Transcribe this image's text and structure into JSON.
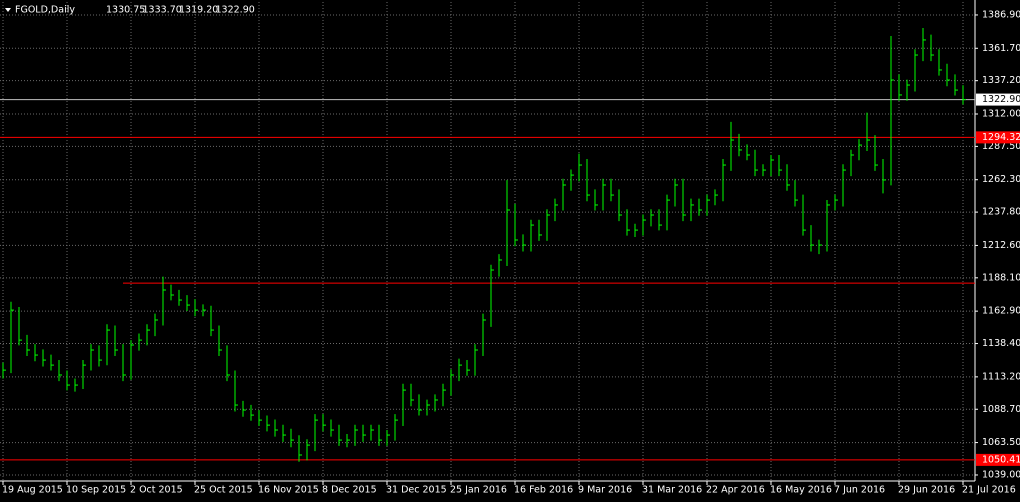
{
  "chart_data": {
    "type": "ohlc",
    "title": "FGOLD,Daily",
    "quote": [
      {
        "value": 1330.75,
        "label": "1330.75"
      },
      {
        "value": 1333.7,
        "label": "1333.70"
      },
      {
        "value": 1319.2,
        "label": "1319.20"
      },
      {
        "value": 1322.9,
        "label": "1322.90"
      }
    ],
    "categories": [
      "19 Aug 2015",
      null,
      null,
      null,
      null,
      null,
      null,
      null,
      "10 Sep 2015",
      null,
      null,
      null,
      null,
      null,
      null,
      null,
      "2 Oct 2015",
      null,
      null,
      null,
      null,
      null,
      null,
      null,
      "25 Oct 2015",
      null,
      null,
      null,
      null,
      null,
      null,
      null,
      "16 Nov 2015",
      null,
      null,
      null,
      null,
      null,
      null,
      null,
      "8 Dec 2015",
      null,
      null,
      null,
      null,
      null,
      null,
      null,
      "31 Dec 2015",
      null,
      null,
      null,
      null,
      null,
      null,
      null,
      "25 Jan 2016",
      null,
      null,
      null,
      null,
      null,
      null,
      null,
      "16 Feb 2016",
      null,
      null,
      null,
      null,
      null,
      null,
      null,
      "9 Mar 2016",
      null,
      null,
      null,
      null,
      null,
      null,
      null,
      "31 Mar 2016",
      null,
      null,
      null,
      null,
      null,
      null,
      null,
      "22 Apr 2016",
      null,
      null,
      null,
      null,
      null,
      null,
      null,
      "16 May 2016",
      null,
      null,
      null,
      null,
      null,
      null,
      null,
      "7 Jun 2016",
      null,
      null,
      null,
      null,
      null,
      null,
      null,
      "29 Jun 2016",
      null,
      null,
      null,
      null,
      null,
      null,
      null,
      "21 Jul 2016"
    ],
    "high": [
      1124,
      1170,
      1166,
      1145,
      1138,
      1134,
      1130,
      1126,
      1118,
      1112,
      1126,
      1138,
      1137,
      1153,
      1152,
      1138,
      1141,
      1146,
      1153,
      1161,
      1189,
      1183,
      1179,
      1175,
      1172,
      1168,
      1167,
      1152,
      1137,
      1118,
      1095,
      1092,
      1088,
      1084,
      1081,
      1077,
      1074,
      1069,
      1066,
      1085,
      1085,
      1081,
      1077,
      1070,
      1077,
      1077,
      1077,
      1077,
      1073,
      1085,
      1108,
      1108,
      1100,
      1096,
      1100,
      1108,
      1119,
      1127,
      1126,
      1138,
      1161,
      1198,
      1206,
      1262,
      1244,
      1221,
      1232,
      1232,
      1240,
      1248,
      1263,
      1270,
      1282,
      1278,
      1255,
      1263,
      1263,
      1255,
      1240,
      1229,
      1236,
      1240,
      1240,
      1251,
      1263,
      1263,
      1248,
      1248,
      1251,
      1255,
      1278,
      1306,
      1297,
      1289,
      1285,
      1274,
      1281,
      1281,
      1274,
      1262,
      1251,
      1228,
      1217,
      1247,
      1251,
      1274,
      1285,
      1293,
      1313,
      1296,
      1278,
      1371,
      1342,
      1338,
      1361,
      1377,
      1372,
      1361,
      1350,
      1342,
      1333.7
    ],
    "low": [
      1112,
      1116,
      1137,
      1129,
      1125,
      1121,
      1118,
      1110,
      1103,
      1102,
      1104,
      1118,
      1121,
      1122,
      1129,
      1110,
      1111,
      1133,
      1137,
      1144,
      1152,
      1171,
      1167,
      1163,
      1159,
      1159,
      1144,
      1129,
      1110,
      1087,
      1083,
      1080,
      1076,
      1072,
      1068,
      1064,
      1060,
      1049,
      1050,
      1057,
      1072,
      1068,
      1061,
      1060,
      1061,
      1064,
      1065,
      1061,
      1061,
      1065,
      1076,
      1091,
      1084,
      1084,
      1087,
      1091,
      1099,
      1110,
      1114,
      1114,
      1129,
      1151,
      1189,
      1197,
      1212,
      1208,
      1208,
      1216,
      1216,
      1231,
      1239,
      1254,
      1261,
      1246,
      1239,
      1239,
      1246,
      1231,
      1220,
      1219,
      1220,
      1227,
      1224,
      1224,
      1242,
      1231,
      1231,
      1235,
      1235,
      1243,
      1246,
      1269,
      1280,
      1277,
      1265,
      1265,
      1265,
      1265,
      1254,
      1242,
      1220,
      1208,
      1206,
      1208,
      1239,
      1242,
      1265,
      1277,
      1284,
      1269,
      1252,
      1258,
      1322,
      1322,
      1329,
      1352,
      1352,
      1341,
      1333,
      1326,
      1319.2
    ],
    "close": [
      1118.3,
      1163.7,
      1141.0,
      1133.5,
      1129.7,
      1125.9,
      1122.1,
      1114.6,
      1107.0,
      1107.0,
      1122.1,
      1133.5,
      1125.9,
      1148.6,
      1133.5,
      1114.6,
      1137.3,
      1141.0,
      1148.6,
      1156.2,
      1178.9,
      1175.1,
      1171.3,
      1167.5,
      1163.7,
      1163.7,
      1148.6,
      1133.5,
      1114.6,
      1091.9,
      1088.1,
      1084.3,
      1080.5,
      1076.7,
      1073.0,
      1069.2,
      1065.4,
      1054.1,
      1061.6,
      1080.5,
      1076.7,
      1073.0,
      1065.4,
      1065.4,
      1073.0,
      1069.2,
      1073.0,
      1065.4,
      1069.2,
      1080.5,
      1103.2,
      1095.7,
      1088.1,
      1091.9,
      1095.7,
      1103.2,
      1114.6,
      1122.1,
      1118.3,
      1133.5,
      1156.2,
      1194.0,
      1201.6,
      1239.4,
      1216.7,
      1212.9,
      1228.0,
      1220.5,
      1235.6,
      1243.2,
      1258.3,
      1265.8,
      1273.4,
      1250.7,
      1243.2,
      1258.3,
      1250.7,
      1235.6,
      1224.2,
      1224.2,
      1231.8,
      1235.6,
      1228.0,
      1246.9,
      1258.3,
      1235.6,
      1243.2,
      1239.4,
      1246.9,
      1250.7,
      1273.4,
      1292.3,
      1284.8,
      1281.0,
      1269.6,
      1269.6,
      1277.2,
      1269.6,
      1258.3,
      1246.9,
      1224.2,
      1212.9,
      1212.9,
      1243.2,
      1246.9,
      1269.6,
      1281.0,
      1288.5,
      1292.3,
      1273.4,
      1262.1,
      1337.7,
      1326.4,
      1333.9,
      1356.6,
      1368.0,
      1356.6,
      1345.3,
      1337.7,
      1330.1,
      1322.9
    ],
    "color": "#00ff00",
    "ylim": [
      1035.2,
      1396.7
    ],
    "yticks": [
      {
        "value": 1039.0,
        "label": "1039.00"
      },
      {
        "value": 1063.5,
        "label": "1063.50"
      },
      {
        "value": 1088.7,
        "label": "1088.70"
      },
      {
        "value": 1113.2,
        "label": "1113.20"
      },
      {
        "value": 1138.4,
        "label": "1138.40"
      },
      {
        "value": 1162.9,
        "label": "1162.90"
      },
      {
        "value": 1188.1,
        "label": "1188.10"
      },
      {
        "value": 1212.6,
        "label": "1212.60"
      },
      {
        "value": 1237.8,
        "label": "1237.80"
      },
      {
        "value": 1262.3,
        "label": "1262.30"
      },
      {
        "value": 1287.5,
        "label": "1287.50"
      },
      {
        "value": 1312.0,
        "label": "1312.00"
      },
      {
        "value": 1337.2,
        "label": "1337.20"
      },
      {
        "value": 1361.7,
        "label": "1361.70"
      },
      {
        "value": 1386.9,
        "label": "1386.90"
      }
    ],
    "grid": true,
    "levels": [
      {
        "value": 1294.32,
        "label": "1294.32",
        "color": "#ff0000"
      },
      {
        "value": 1184.1,
        "color": "#ff0000"
      },
      {
        "value": 1050.41,
        "label": "1050.41",
        "color": "#ff0000"
      }
    ],
    "bid": {
      "value": 1322.9,
      "label": "1322.90",
      "color": "#c0c0c0"
    }
  }
}
